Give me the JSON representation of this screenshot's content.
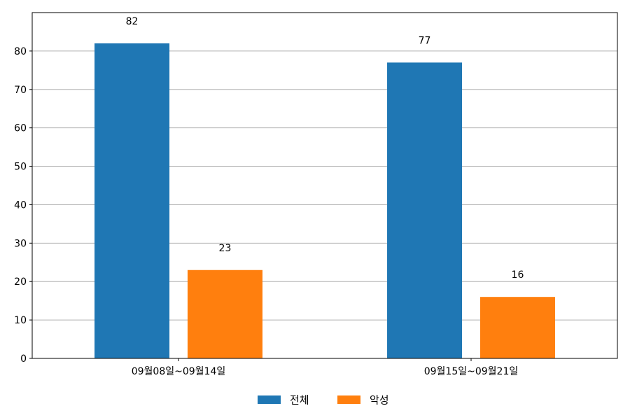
{
  "chart_data": {
    "type": "bar",
    "categories": [
      "09월08일~09월14일",
      "09월15일~09월21일"
    ],
    "series": [
      {
        "name": "전체",
        "values": [
          82,
          77
        ],
        "color": "#1f77b4"
      },
      {
        "name": "악성",
        "values": [
          23,
          16
        ],
        "color": "#ff7f0e"
      }
    ],
    "ylim": [
      0,
      90
    ],
    "yticks": [
      0,
      10,
      20,
      30,
      40,
      50,
      60,
      70,
      80
    ],
    "grid": true,
    "legend_position": "bottom-center",
    "data_labels": true
  }
}
